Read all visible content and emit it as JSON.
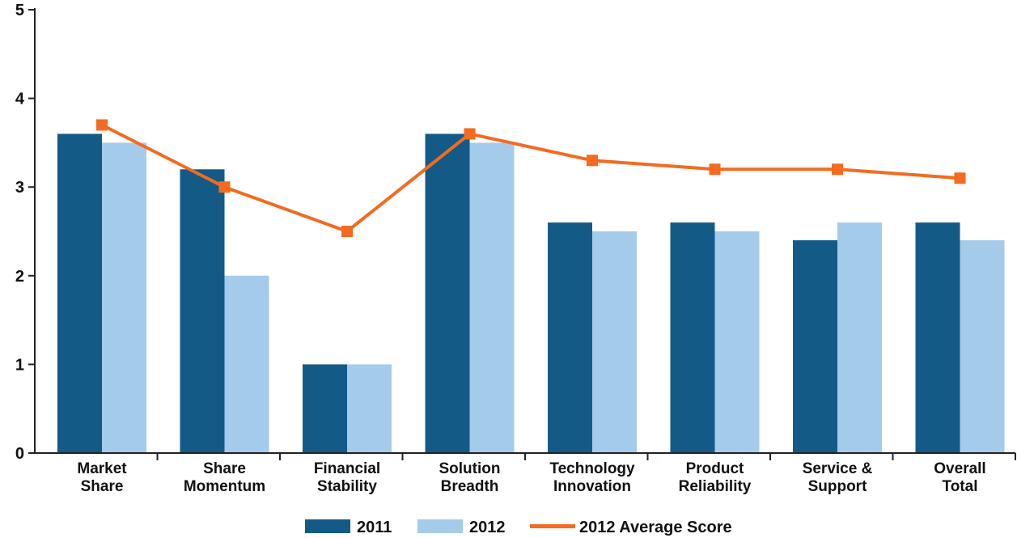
{
  "chart_data": {
    "type": "bar",
    "categories": [
      [
        "Market",
        "Share"
      ],
      [
        "Share",
        "Momentum"
      ],
      [
        "Financial",
        "Stability"
      ],
      [
        "Solution",
        "Breadth"
      ],
      [
        "Technology",
        "Innovation"
      ],
      [
        "Product",
        "Reliability"
      ],
      [
        "Service &",
        "Support"
      ],
      [
        "Overall",
        "Total"
      ]
    ],
    "series": [
      {
        "name": "2011",
        "type": "bar",
        "color": "#145a87",
        "values": [
          3.6,
          3.2,
          1.0,
          3.6,
          2.6,
          2.6,
          2.4,
          2.6
        ]
      },
      {
        "name": "2012",
        "type": "bar",
        "color": "#a4cbea",
        "values": [
          3.5,
          2.0,
          1.0,
          3.5,
          2.5,
          2.5,
          2.6,
          2.4
        ]
      },
      {
        "name": "2012 Average Score",
        "type": "line",
        "color": "#f26b21",
        "values": [
          3.7,
          3.0,
          2.5,
          3.6,
          3.3,
          3.2,
          3.2,
          3.1
        ]
      }
    ],
    "yticks": [
      "0",
      "1",
      "2",
      "3",
      "4",
      "5"
    ],
    "ylim": [
      0,
      5
    ],
    "grid": false,
    "legend_position": "bottom"
  }
}
